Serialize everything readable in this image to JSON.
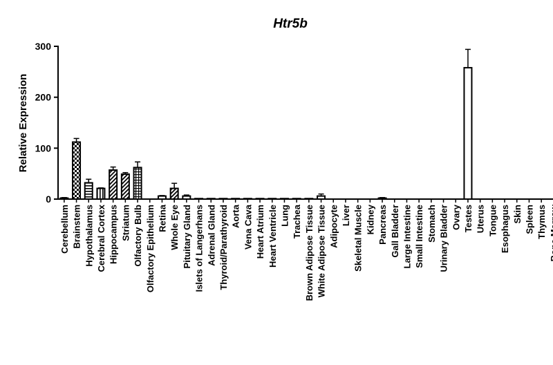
{
  "chart_data": {
    "type": "bar",
    "title": "Htr5b",
    "xlabel": "",
    "ylabel": "Relative Expression",
    "ylim": [
      0,
      300
    ],
    "yticks": [
      "0",
      "100",
      "200",
      "300"
    ],
    "categories": [
      "Cerebellum",
      "Brainstem",
      "Hypothalamus",
      "Cerebral Cortex",
      "Hippocampus",
      "Striatum",
      "Olfactory Bulb",
      "Olfactory Epithelium",
      "Retina",
      "Whole Eye",
      "Pituitary Gland",
      "Islets of Langerhans",
      "Adrenal Gland",
      "Thyroid/Parathyroid",
      "Aorta",
      "Vena Cava",
      "Heart Atrium",
      "Heart Ventricle",
      "Lung",
      "Trachea",
      "Brown Adipose Tissue",
      "White Adipose Tissue",
      "Adipocyte",
      "Liver",
      "Skeletal Muscle",
      "Kidney",
      "Pancreas",
      "Gall Bladder",
      "Large Intestine",
      "Small Intestine",
      "Stomach",
      "Urinary Bladder",
      "Ovary",
      "Testes",
      "Uterus",
      "Tongue",
      "Esophagus",
      "Skin",
      "Spleen",
      "Thymus",
      "Bone Marrow"
    ],
    "values": [
      2,
      112,
      32,
      21,
      57,
      49,
      62,
      0,
      6,
      21,
      6,
      1,
      1,
      1,
      1,
      1,
      1,
      1,
      1,
      1,
      1,
      6,
      0,
      0,
      0,
      0,
      2,
      0,
      0,
      0,
      0,
      0,
      0,
      258,
      0,
      0,
      0,
      0,
      0,
      0,
      0
    ],
    "errors": [
      1,
      7,
      7,
      1,
      6,
      3,
      11,
      0,
      1,
      10,
      2,
      0,
      0,
      0,
      0,
      0,
      0,
      0,
      0,
      0,
      0,
      4,
      0,
      0,
      0,
      0,
      1,
      0,
      0,
      0,
      0,
      0,
      0,
      36,
      0,
      0,
      0,
      0,
      0,
      0,
      0
    ],
    "fill_patterns": [
      "black",
      "checker",
      "hlines",
      "vlines",
      "diag",
      "diag",
      "grid",
      "white",
      "white",
      "diag",
      "white",
      "white",
      "white",
      "white",
      "white",
      "white",
      "white",
      "white",
      "white",
      "white",
      "white",
      "white",
      "white",
      "white",
      "white",
      "white",
      "white",
      "white",
      "white",
      "white",
      "white",
      "white",
      "white",
      "white",
      "white",
      "white",
      "white",
      "white",
      "white",
      "white",
      "white"
    ],
    "grid": false,
    "legend": "none"
  }
}
